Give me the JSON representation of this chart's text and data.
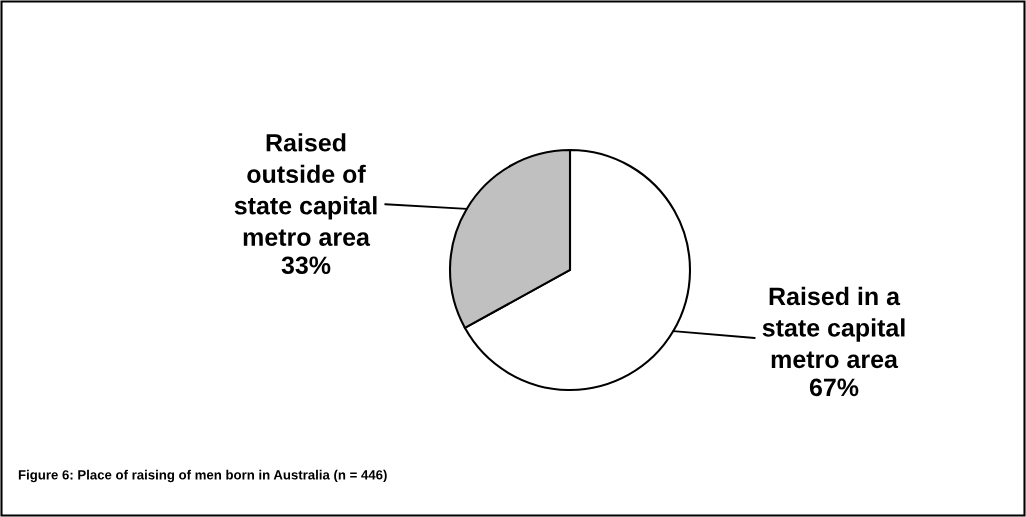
{
  "chart_data": {
    "type": "pie",
    "title": "Figure 6: Place of raising of men born in Australia (n = 446)",
    "categories": [
      "Raised in a\nstate capital\nmetro area",
      "Raised\noutside of\nstate capital\nmetro area"
    ],
    "values": [
      67,
      33
    ],
    "colors": [
      "#ffffff",
      "#c0c0c0"
    ],
    "value_labels": [
      "67%",
      "33%"
    ]
  }
}
